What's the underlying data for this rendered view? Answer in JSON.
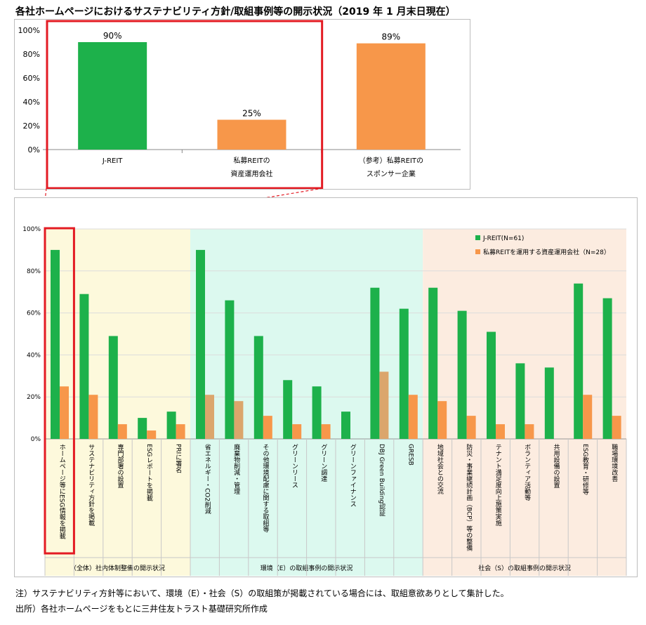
{
  "title": "各社ホームページにおけるサステナビリティ方針/取組事例等の開示状況（2019 年 1 月末日現在）",
  "notes": {
    "note": "注）サステナビリティ方針等において、環境（E）・社会（S）の取組策が掲載されている場合には、取組意欲ありとして集計した。",
    "source": "出所）各社ホームページをもとに三井住友トラスト基礎研究所作成"
  },
  "colors": {
    "green": "#1db14b",
    "orange": "#f7974a",
    "orange_muted": "#dba66c",
    "highlight": "#e31b23",
    "band_overall": "#fdf9dc",
    "band_env": "#dcf9ef",
    "band_soc": "#fcece0"
  },
  "chart_data": [
    {
      "type": "bar",
      "title": "",
      "ylim": [
        0,
        100
      ],
      "yticks": [
        "0%",
        "20%",
        "40%",
        "60%",
        "80%",
        "100%"
      ],
      "categories": [
        [
          "J-REIT"
        ],
        [
          "私募REITの",
          "資産運用会社"
        ],
        [
          "（参考）私募REITの",
          "スポンサー企業"
        ]
      ],
      "values": [
        90,
        25,
        89
      ],
      "data_labels": [
        "90%",
        "25%",
        "89%"
      ],
      "bar_colors": [
        "green",
        "orange",
        "orange"
      ],
      "highlighted_categories": [
        0,
        1
      ]
    },
    {
      "type": "bar",
      "ylim": [
        0,
        100
      ],
      "yticks": [
        "0%",
        "20%",
        "40%",
        "60%",
        "80%",
        "100%"
      ],
      "legend_position": "top-right",
      "series": [
        {
          "name": "J-REIT(N=61)",
          "color": "green",
          "values": [
            90,
            69,
            49,
            10,
            13,
            90,
            66,
            49,
            28,
            25,
            13,
            72,
            62,
            72,
            61,
            51,
            36,
            34,
            74,
            67
          ]
        },
        {
          "name": "私募REITを運用する資産運用会社（N=28）",
          "color": "orange",
          "values": [
            25,
            21,
            7,
            4,
            7,
            21,
            18,
            11,
            7,
            7,
            0,
            32,
            21,
            18,
            11,
            7,
            7,
            0,
            21,
            11
          ]
        }
      ],
      "categories": [
        "ホームページ等にESG情報を掲載",
        "サステナビリティ方針を掲載",
        "専門部署の設置",
        "ESGレポートを掲載",
        "PRIに署名",
        "省エネルギー・CO2削減",
        "廃棄物削減・管理",
        "その他環境配慮に関する取組等",
        "グリーンリース",
        "グリーン調達",
        "グリーンファイナンス",
        "DBJ Green Building認証",
        "GRESB",
        "地域社会との交流",
        "防災・事業継続計画（BCP）等の整備",
        "テナント満足度向上施策実施",
        "ボランティア活動等",
        "共用設備の設置",
        "ESG教育・研修等",
        "職場環境改善"
      ],
      "groups": [
        {
          "label": "（全体）社内体制整備の開示状況",
          "band": "band_overall",
          "count": 5
        },
        {
          "label": "環境（E）の取組事例の開示状況",
          "band": "band_env",
          "count": 8
        },
        {
          "label": "社会（S）の取組事例の開示状況",
          "band": "band_soc",
          "count": 7
        }
      ],
      "highlighted_category": 0
    }
  ]
}
